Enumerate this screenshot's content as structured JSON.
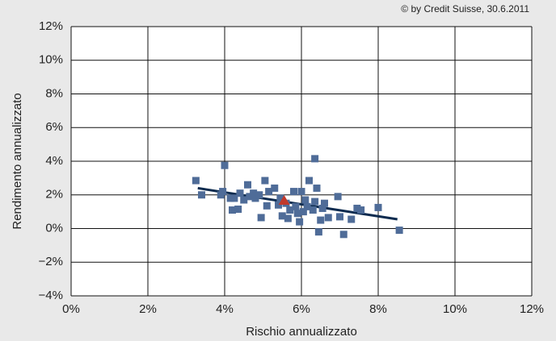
{
  "chart_data": {
    "type": "scatter",
    "annotation": "© by Credit Suisse, 30.6.2011",
    "x_label": "Rischio annualizzato",
    "y_label": "Rendimento annualizzato",
    "xlim": [
      0,
      12
    ],
    "ylim": [
      -4,
      12
    ],
    "xticks": [
      {
        "value": 0,
        "label": "0%"
      },
      {
        "value": 2,
        "label": "2%"
      },
      {
        "value": 4,
        "label": "4%"
      },
      {
        "value": 6,
        "label": "6%"
      },
      {
        "value": 8,
        "label": "8%"
      },
      {
        "value": 10,
        "label": "10%"
      },
      {
        "value": 12,
        "label": "12%"
      }
    ],
    "yticks": [
      {
        "value": -4,
        "label": "−4%"
      },
      {
        "value": -2,
        "label": "−2%"
      },
      {
        "value": 0,
        "label": "0%"
      },
      {
        "value": 2,
        "label": "2%"
      },
      {
        "value": 4,
        "label": "4%"
      },
      {
        "value": 6,
        "label": "6%"
      },
      {
        "value": 8,
        "label": "8%"
      },
      {
        "value": 10,
        "label": "10%"
      },
      {
        "value": 12,
        "label": "12%"
      }
    ],
    "grid": true,
    "series": [
      {
        "color": "#4f6c98",
        "marker": "square",
        "x": [
          3.25,
          3.4,
          3.9,
          3.95,
          4.0,
          4.15,
          4.2,
          4.25,
          4.35,
          4.4,
          4.5,
          4.6,
          4.65,
          4.75,
          4.8,
          4.9,
          4.95,
          5.05,
          5.1,
          5.15,
          5.3,
          5.4,
          5.45,
          5.5,
          5.6,
          5.65,
          5.7,
          5.8,
          5.85,
          5.9,
          5.95,
          6.0,
          6.05,
          6.1,
          6.15,
          6.2,
          6.3,
          6.35,
          6.35,
          6.4,
          6.45,
          6.5,
          6.55,
          6.6,
          6.7,
          6.95,
          7.0,
          7.1,
          7.3,
          7.45,
          7.55,
          8.0,
          8.55
        ],
        "values": [
          2.85,
          2.0,
          2.0,
          2.2,
          3.75,
          1.8,
          1.1,
          1.8,
          1.15,
          2.1,
          1.7,
          2.6,
          1.9,
          2.1,
          1.8,
          2.0,
          0.65,
          2.85,
          1.35,
          2.2,
          2.4,
          1.4,
          1.8,
          0.75,
          1.5,
          0.6,
          1.1,
          2.2,
          1.3,
          0.9,
          0.4,
          2.2,
          1.0,
          1.7,
          1.3,
          2.85,
          1.1,
          1.6,
          4.15,
          2.4,
          -0.2,
          0.5,
          1.2,
          1.5,
          0.65,
          1.9,
          0.7,
          -0.35,
          0.55,
          1.2,
          1.1,
          1.25,
          -0.1
        ]
      },
      {
        "color": "#c0392b",
        "marker": "triangle",
        "x": [
          5.55
        ],
        "values": [
          1.65
        ]
      }
    ],
    "trendline": {
      "color": "#0d2b4f",
      "x": [
        3.3,
        8.5
      ],
      "values": [
        2.4,
        0.55
      ]
    }
  }
}
